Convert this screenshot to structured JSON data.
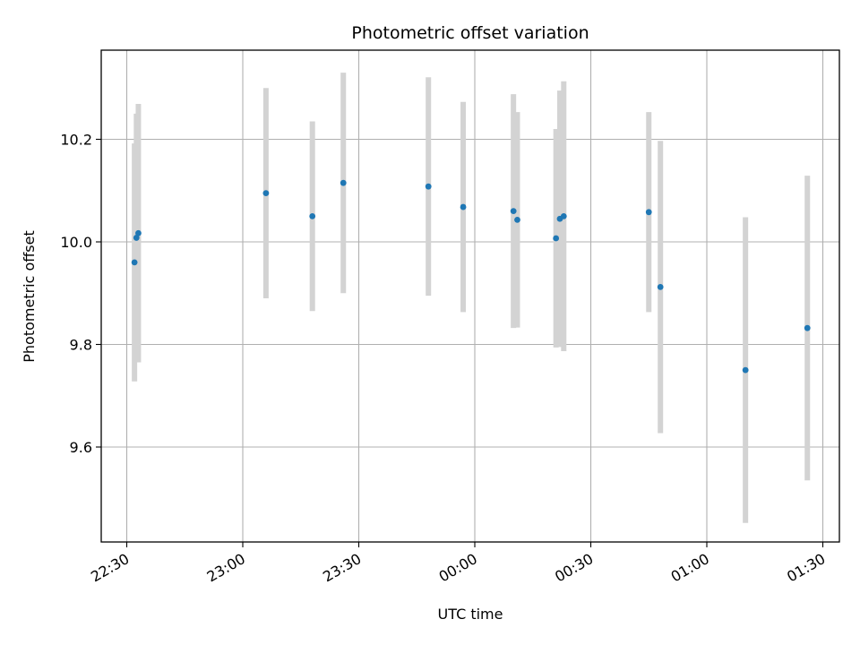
{
  "chart_data": {
    "type": "scatter",
    "title": "Photometric offset variation",
    "xlabel": "UTC time",
    "ylabel": "Photometric offset",
    "x_tick_labels": [
      "22:30",
      "23:00",
      "23:30",
      "00:00",
      "00:30",
      "01:00",
      "01:30"
    ],
    "y_tick_labels": [
      "9.6",
      "9.8",
      "10.0",
      "10.2"
    ],
    "x_axis_format": "HH:MM",
    "ylim": [
      9.42,
      10.37
    ],
    "grid": true,
    "points": [
      {
        "x": "22:32",
        "y": 9.96,
        "yerr": 0.232
      },
      {
        "x": "22:32:30",
        "y": 10.008,
        "yerr": 0.242
      },
      {
        "x": "22:33",
        "y": 10.017,
        "yerr": 0.252
      },
      {
        "x": "23:06",
        "y": 10.095,
        "yerr": 0.205
      },
      {
        "x": "23:18",
        "y": 10.05,
        "yerr": 0.185
      },
      {
        "x": "23:26",
        "y": 10.115,
        "yerr": 0.215
      },
      {
        "x": "23:48",
        "y": 10.108,
        "yerr": 0.213
      },
      {
        "x": "23:57",
        "y": 10.068,
        "yerr": 0.205
      },
      {
        "x": "00:10",
        "y": 10.06,
        "yerr": 0.228
      },
      {
        "x": "00:11",
        "y": 10.043,
        "yerr": 0.21
      },
      {
        "x": "00:21",
        "y": 10.007,
        "yerr": 0.213
      },
      {
        "x": "00:22",
        "y": 10.045,
        "yerr": 0.25
      },
      {
        "x": "00:23",
        "y": 10.05,
        "yerr": 0.263
      },
      {
        "x": "00:45",
        "y": 10.058,
        "yerr": 0.195
      },
      {
        "x": "00:48",
        "y": 9.912,
        "yerr": 0.285
      },
      {
        "x": "01:10",
        "y": 9.75,
        "yerr": 0.298
      },
      {
        "x": "01:26",
        "y": 9.832,
        "yerr": 0.297
      }
    ],
    "colors": {
      "point": "#1f77b4",
      "errorbar": "#d3d3d3",
      "grid": "#b0b0b0"
    }
  }
}
